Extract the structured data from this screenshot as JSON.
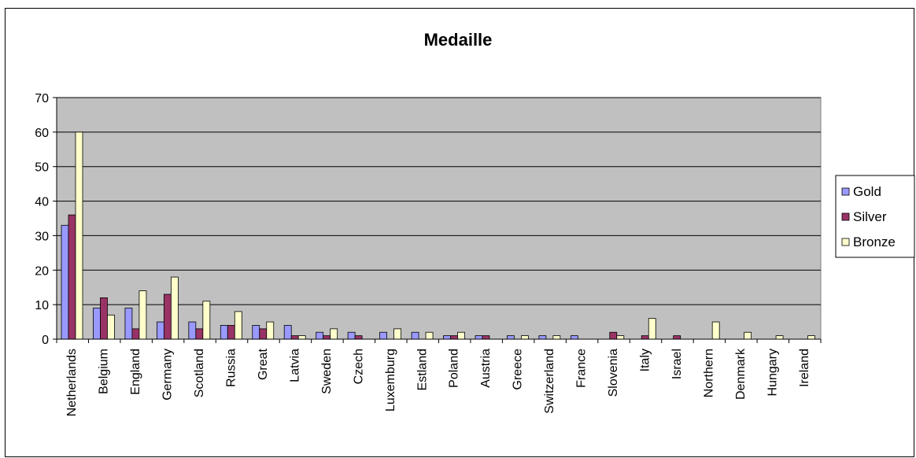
{
  "chart_data": {
    "type": "bar",
    "title": "Medaille",
    "xlabel": "",
    "ylabel": "",
    "ylim": [
      0,
      70
    ],
    "yticks": [
      0,
      10,
      20,
      30,
      40,
      50,
      60,
      70
    ],
    "grid": true,
    "legend_position": "right",
    "categories": [
      "Netherlands",
      "Belgium",
      "England",
      "Germany",
      "Scotland",
      "Russia",
      "Great",
      "Latvia",
      "Sweden",
      "Czech",
      "Luxemburg",
      "Estland",
      "Poland",
      "Austria",
      "Greece",
      "Switzerland",
      "France",
      "Slovenia",
      "Italy",
      "Israel",
      "Northern",
      "Denmark",
      "Hungary",
      "Ireland"
    ],
    "series": [
      {
        "name": "Gold",
        "color": "#9999ff",
        "values": [
          33,
          9,
          9,
          5,
          5,
          4,
          4,
          4,
          2,
          2,
          2,
          2,
          1,
          1,
          1,
          1,
          1,
          0,
          0,
          0,
          0,
          0,
          0,
          0
        ]
      },
      {
        "name": "Silver",
        "color": "#993366",
        "values": [
          36,
          12,
          3,
          13,
          3,
          4,
          3,
          1,
          1,
          1,
          0,
          0,
          1,
          1,
          0,
          0,
          0,
          2,
          1,
          1,
          0,
          0,
          0,
          0
        ]
      },
      {
        "name": "Bronze",
        "color": "#ffffcc",
        "values": [
          60,
          7,
          14,
          18,
          11,
          8,
          5,
          1,
          3,
          0,
          3,
          2,
          2,
          0,
          1,
          1,
          0,
          1,
          6,
          0,
          5,
          2,
          1,
          1
        ]
      }
    ],
    "plot_background": "#c0c0c0"
  }
}
